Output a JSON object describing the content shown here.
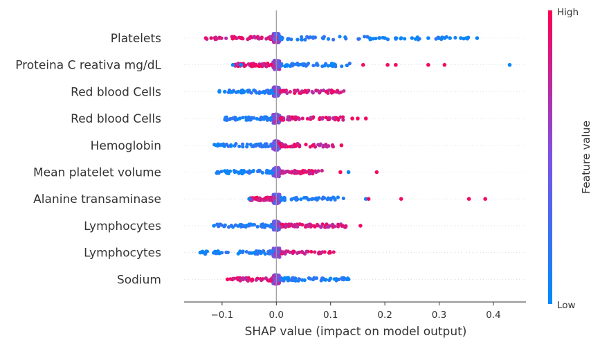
{
  "chart_data": {
    "type": "scatter",
    "title": "",
    "xlabel": "SHAP value (impact on model output)",
    "ylabel": "",
    "xlim": [
      -0.17,
      0.46
    ],
    "xticks": [
      -0.1,
      0.0,
      0.1,
      0.2,
      0.3,
      0.4
    ],
    "xtick_labels": [
      "−0.1",
      "0.0",
      "0.1",
      "0.2",
      "0.3",
      "0.4"
    ],
    "features": [
      {
        "name": "Platelets",
        "min": -0.13,
        "max": 0.355,
        "points": [
          [
            -0.13,
            0.9
          ],
          [
            -0.12,
            0.9
          ],
          [
            -0.105,
            0.85
          ],
          [
            0.37,
            0.05
          ],
          [
            0.35,
            0.02
          ],
          [
            0.34,
            0.05
          ],
          [
            0.32,
            0.05
          ],
          [
            0.31,
            0.02
          ],
          [
            0.3,
            0.05
          ],
          [
            0.28,
            0.05
          ],
          [
            0.26,
            0.02
          ],
          [
            0.25,
            0.08
          ],
          [
            0.23,
            0.05
          ],
          [
            0.22,
            0.08
          ],
          [
            0.2,
            0.05
          ],
          [
            0.19,
            0.08
          ]
        ]
      },
      {
        "name": "Proteina C reativa mg/dL",
        "min": -0.08,
        "max": 0.14,
        "points": [
          [
            -0.08,
            0.05
          ],
          [
            -0.065,
            0.05
          ],
          [
            0.16,
            0.95
          ],
          [
            0.205,
            0.95
          ],
          [
            0.22,
            0.95
          ],
          [
            0.28,
            0.95
          ],
          [
            0.31,
            0.95
          ],
          [
            0.43,
            0.05
          ]
        ]
      },
      {
        "name": "Red blood Cells",
        "min": -0.105,
        "max": 0.125,
        "points": [
          [
            -0.105,
            0.05
          ],
          [
            -0.095,
            0.05
          ],
          [
            -0.085,
            0.05
          ],
          [
            -0.07,
            0.05
          ]
        ]
      },
      {
        "name": "Red blood Cells",
        "min": -0.095,
        "max": 0.13,
        "points": [
          [
            0.14,
            0.95
          ],
          [
            0.15,
            0.95
          ],
          [
            0.165,
            0.95
          ]
        ]
      },
      {
        "name": "Hemoglobin",
        "min": -0.115,
        "max": 0.105,
        "points": [
          [
            0.12,
            0.95
          ]
        ]
      },
      {
        "name": "Mean platelet volume ",
        "min": -0.11,
        "max": 0.085,
        "points": [
          [
            0.118,
            0.95
          ],
          [
            0.133,
            0.05
          ],
          [
            0.185,
            0.95
          ]
        ]
      },
      {
        "name": "Alanine transaminase",
        "min": -0.05,
        "max": 0.125,
        "points": [
          [
            -0.05,
            0.05
          ],
          [
            0.165,
            0.05
          ],
          [
            0.17,
            0.95
          ],
          [
            0.23,
            0.95
          ],
          [
            0.355,
            0.95
          ],
          [
            0.385,
            0.95
          ]
        ]
      },
      {
        "name": "Lymphocytes",
        "min": -0.115,
        "max": 0.13,
        "points": [
          [
            -0.115,
            0.05
          ],
          [
            0.155,
            0.95
          ]
        ]
      },
      {
        "name": "Lymphocytes",
        "min": -0.14,
        "max": 0.112,
        "points": [
          [
            -0.14,
            0.05
          ],
          [
            -0.135,
            0.05
          ]
        ]
      },
      {
        "name": "Sodium",
        "min": -0.09,
        "max": 0.133,
        "points": [
          [
            -0.09,
            0.95
          ],
          [
            0.13,
            0.05
          ],
          [
            0.133,
            0.05
          ]
        ]
      }
    ],
    "colorbar": {
      "label": "Feature value",
      "high_label": "High",
      "low_label": "Low",
      "low_color": "#008bfb",
      "mid_color": "#7c52e6",
      "high_color": "#ff0052"
    },
    "grid": false,
    "legend": "none"
  }
}
